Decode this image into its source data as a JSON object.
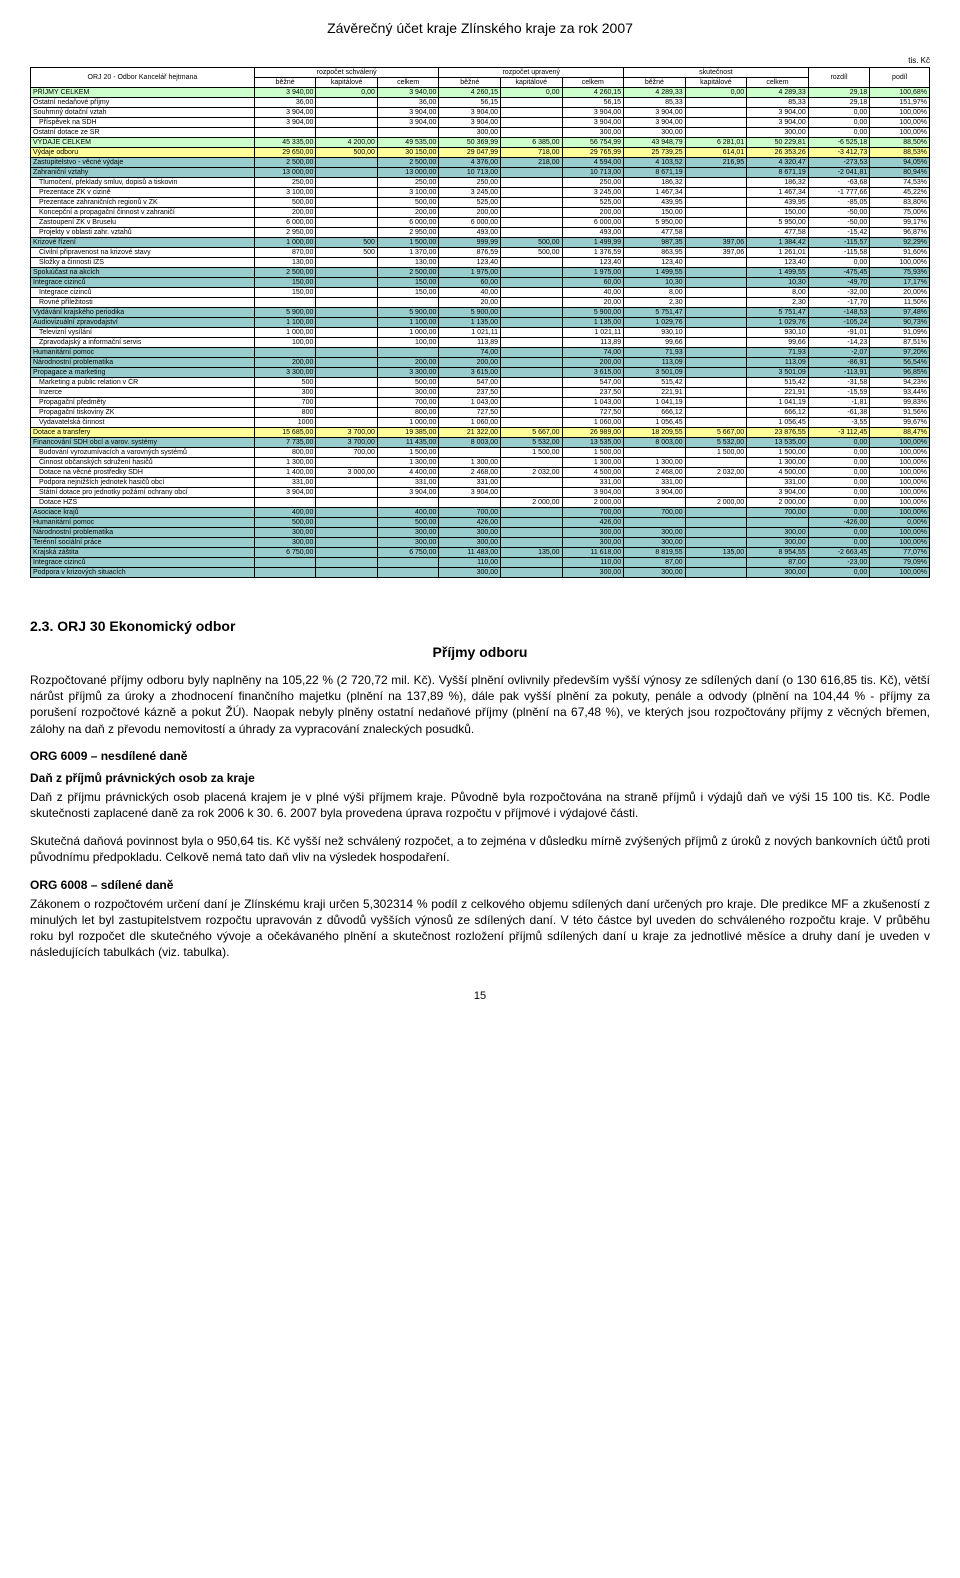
{
  "page_title": "Závěrečný účet kraje Zlínského kraje za rok 2007",
  "unit": "tis. Kč",
  "table": {
    "header_top": [
      "ORJ 20 - Odbor Kancelář hejtmana",
      "rozpočet schválený",
      "rozpočet upravený",
      "skutečnost",
      "rozdíl",
      "podíl"
    ],
    "header_sub": [
      "běžné",
      "kapitálové",
      "celkem",
      "běžné",
      "kapitálové",
      "celkem",
      "běžné",
      "kapitálové",
      "celkem"
    ],
    "rows": [
      {
        "hl": "green",
        "indent": 0,
        "label": "PŘÍJMY CELKEM",
        "v": [
          "3 940,00",
          "0,00",
          "3 940,00",
          "4 260,15",
          "0,00",
          "4 260,15",
          "4 289,33",
          "0,00",
          "4 289,33",
          "29,18",
          "100,68%"
        ]
      },
      {
        "indent": 0,
        "label": "Ostatní nedaňové příjmy",
        "v": [
          "36,00",
          "",
          "36,00",
          "56,15",
          "",
          "56,15",
          "85,33",
          "",
          "85,33",
          "29,18",
          "151,97%"
        ]
      },
      {
        "indent": 0,
        "label": "Souhrnný dotační vztah",
        "v": [
          "3 904,00",
          "",
          "3 904,00",
          "3 904,00",
          "",
          "3 904,00",
          "3 904,00",
          "",
          "3 904,00",
          "0,00",
          "100,00%"
        ]
      },
      {
        "indent": 1,
        "label": "Příspěvek na SDH",
        "v": [
          "3 904,00",
          "",
          "3 904,00",
          "3 904,00",
          "",
          "3 904,00",
          "3 904,00",
          "",
          "3 904,00",
          "0,00",
          "100,00%"
        ]
      },
      {
        "indent": 0,
        "label": "Ostatní dotace ze SR",
        "v": [
          "",
          "",
          "",
          "300,00",
          "",
          "300,00",
          "300,00",
          "",
          "300,00",
          "0,00",
          "100,00%"
        ]
      },
      {
        "hl": "green",
        "indent": 0,
        "label": "VÝDAJE CELKEM",
        "v": [
          "45 335,00",
          "4 200,00",
          "49 535,00",
          "50 369,99",
          "6 385,00",
          "56 754,99",
          "43 948,79",
          "6 281,01",
          "50 229,81",
          "-6 525,18",
          "88,50%"
        ]
      },
      {
        "hl": "yellow",
        "indent": 0,
        "label": "Výdaje odboru",
        "v": [
          "29 650,00",
          "500,00",
          "30 150,00",
          "29 047,99",
          "718,00",
          "29 765,99",
          "25 739,25",
          "614,01",
          "26 353,26",
          "-3 412,73",
          "88,53%"
        ]
      },
      {
        "hl": "teal",
        "indent": 0,
        "label": "Zastupitelstvo - věcné výdaje",
        "v": [
          "2 500,00",
          "",
          "2 500,00",
          "4 376,00",
          "218,00",
          "4 594,00",
          "4 103,52",
          "216,95",
          "4 320,47",
          "-273,53",
          "94,05%"
        ]
      },
      {
        "hl": "teal",
        "indent": 0,
        "label": "Zahraniční vztahy",
        "v": [
          "13 000,00",
          "",
          "13 000,00",
          "10 713,00",
          "",
          "10 713,00",
          "8 671,19",
          "",
          "8 671,19",
          "-2 041,81",
          "80,94%"
        ]
      },
      {
        "indent": 1,
        "label": "Tlumočení, překlady smluv, dopisů a tiskovin",
        "v": [
          "250,00",
          "",
          "250,00",
          "250,00",
          "",
          "250,00",
          "186,32",
          "",
          "186,32",
          "-63,68",
          "74,53%"
        ]
      },
      {
        "indent": 1,
        "label": "Prezentace ZK v cizině",
        "v": [
          "3 100,00",
          "",
          "3 100,00",
          "3 245,00",
          "",
          "3 245,00",
          "1 467,34",
          "",
          "1 467,34",
          "-1 777,66",
          "45,22%"
        ]
      },
      {
        "indent": 1,
        "label": "Prezentace zahraničních regionů v ZK",
        "v": [
          "500,00",
          "",
          "500,00",
          "525,00",
          "",
          "525,00",
          "439,95",
          "",
          "439,95",
          "-85,05",
          "83,80%"
        ]
      },
      {
        "indent": 1,
        "label": "Koncepční a propagační činnost v zahraničí",
        "v": [
          "200,00",
          "",
          "200,00",
          "200,00",
          "",
          "200,00",
          "150,00",
          "",
          "150,00",
          "-50,00",
          "75,00%"
        ]
      },
      {
        "indent": 1,
        "label": "Zastoupení ZK v Bruselu",
        "v": [
          "6 000,00",
          "",
          "6 000,00",
          "6 000,00",
          "",
          "6 000,00",
          "5 950,00",
          "",
          "5 950,00",
          "-50,00",
          "99,17%"
        ]
      },
      {
        "indent": 1,
        "label": "Projekty v oblasti zahr. vztahů",
        "v": [
          "2 950,00",
          "",
          "2 950,00",
          "493,00",
          "",
          "493,00",
          "477,58",
          "",
          "477,58",
          "-15,42",
          "96,87%"
        ]
      },
      {
        "hl": "teal",
        "indent": 0,
        "label": "Krizové řízení",
        "v": [
          "1 000,00",
          "500",
          "1 500,00",
          "999,99",
          "500,00",
          "1 499,99",
          "987,35",
          "397,06",
          "1 384,42",
          "-115,57",
          "92,29%"
        ]
      },
      {
        "indent": 1,
        "label": "Civilní připravenost na krizové stavy",
        "v": [
          "870,00",
          "500",
          "1 370,00",
          "876,59",
          "500,00",
          "1 376,59",
          "863,95",
          "397,06",
          "1 261,01",
          "-115,58",
          "91,60%"
        ]
      },
      {
        "indent": 1,
        "label": "Složky a činnosti IZS",
        "v": [
          "130,00",
          "",
          "130,00",
          "123,40",
          "",
          "123,40",
          "123,40",
          "",
          "123,40",
          "0,00",
          "100,00%"
        ]
      },
      {
        "hl": "teal",
        "indent": 0,
        "label": "Spoluúčast na akcích",
        "v": [
          "2 500,00",
          "",
          "2 500,00",
          "1 975,00",
          "",
          "1 975,00",
          "1 499,55",
          "",
          "1 499,55",
          "-475,45",
          "75,93%"
        ]
      },
      {
        "hl": "teal",
        "indent": 0,
        "label": "Integrace cizinců",
        "v": [
          "150,00",
          "",
          "150,00",
          "60,00",
          "",
          "60,00",
          "10,30",
          "",
          "10,30",
          "-49,70",
          "17,17%"
        ]
      },
      {
        "indent": 1,
        "label": "Integrace cizinců",
        "v": [
          "150,00",
          "",
          "150,00",
          "40,00",
          "",
          "40,00",
          "8,00",
          "",
          "8,00",
          "-32,00",
          "20,00%"
        ]
      },
      {
        "indent": 1,
        "label": "Rovné příležitosti",
        "v": [
          "",
          "",
          "",
          "20,00",
          "",
          "20,00",
          "2,30",
          "",
          "2,30",
          "-17,70",
          "11,50%"
        ]
      },
      {
        "hl": "teal",
        "indent": 0,
        "label": "Vydávání krajského periodika",
        "v": [
          "5 900,00",
          "",
          "5 900,00",
          "5 900,00",
          "",
          "5 900,00",
          "5 751,47",
          "",
          "5 751,47",
          "-148,53",
          "97,48%"
        ]
      },
      {
        "hl": "teal",
        "indent": 0,
        "label": "Audiovizuální zpravodajství",
        "v": [
          "1 100,00",
          "",
          "1 100,00",
          "1 135,00",
          "",
          "1 135,00",
          "1 029,76",
          "",
          "1 029,76",
          "-105,24",
          "90,73%"
        ]
      },
      {
        "indent": 1,
        "label": "Televizní vysílání",
        "v": [
          "1 000,00",
          "",
          "1 000,00",
          "1 021,11",
          "",
          "1 021,11",
          "930,10",
          "",
          "930,10",
          "-91,01",
          "91,09%"
        ]
      },
      {
        "indent": 1,
        "label": "Zpravodajský a informační servis",
        "v": [
          "100,00",
          "",
          "100,00",
          "113,89",
          "",
          "113,89",
          "99,66",
          "",
          "99,66",
          "-14,23",
          "87,51%"
        ]
      },
      {
        "hl": "teal",
        "indent": 0,
        "label": "Humanitární pomoc",
        "v": [
          "",
          "",
          "",
          "74,00",
          "",
          "74,00",
          "71,93",
          "",
          "71,93",
          "-2,07",
          "97,20%"
        ]
      },
      {
        "hl": "teal",
        "indent": 0,
        "label": "Národnostní problematika",
        "v": [
          "200,00",
          "",
          "200,00",
          "200,00",
          "",
          "200,00",
          "113,09",
          "",
          "113,09",
          "-86,91",
          "56,54%"
        ]
      },
      {
        "hl": "teal",
        "indent": 0,
        "label": "Propagace a marketing",
        "v": [
          "3 300,00",
          "",
          "3 300,00",
          "3 615,00",
          "",
          "3 615,00",
          "3 501,09",
          "",
          "3 501,09",
          "-113,91",
          "96,85%"
        ]
      },
      {
        "indent": 1,
        "label": "Marketing a public relation v ČR",
        "v": [
          "500",
          "",
          "500,00",
          "547,00",
          "",
          "547,00",
          "515,42",
          "",
          "515,42",
          "-31,58",
          "94,23%"
        ]
      },
      {
        "indent": 1,
        "label": "Inzerce",
        "v": [
          "300",
          "",
          "300,00",
          "237,50",
          "",
          "237,50",
          "221,91",
          "",
          "221,91",
          "-15,59",
          "93,44%"
        ]
      },
      {
        "indent": 1,
        "label": "Propagační předměty",
        "v": [
          "700",
          "",
          "700,00",
          "1 043,00",
          "",
          "1 043,00",
          "1 041,19",
          "",
          "1 041,19",
          "-1,81",
          "99,83%"
        ]
      },
      {
        "indent": 1,
        "label": "Propagační tiskoviny ZK",
        "v": [
          "800",
          "",
          "800,00",
          "727,50",
          "",
          "727,50",
          "666,12",
          "",
          "666,12",
          "-61,38",
          "91,56%"
        ]
      },
      {
        "indent": 1,
        "label": "Vydavatelská činnost",
        "v": [
          "1000",
          "",
          "1 000,00",
          "1 060,00",
          "",
          "1 060,00",
          "1 056,45",
          "",
          "1 056,45",
          "-3,55",
          "99,67%"
        ]
      },
      {
        "hl": "yellow",
        "indent": 0,
        "label": "Dotace a transfery",
        "v": [
          "15 685,00",
          "3 700,00",
          "19 385,00",
          "21 322,00",
          "5 667,00",
          "26 989,00",
          "18 209,55",
          "5 667,00",
          "23 876,55",
          "-3 112,45",
          "88,47%"
        ]
      },
      {
        "hl": "teal",
        "indent": 0,
        "label": "Financování SDH obcí a varov. systémy",
        "v": [
          "7 735,00",
          "3 700,00",
          "11 435,00",
          "8 003,00",
          "5 532,00",
          "13 535,00",
          "8 003,00",
          "5 532,00",
          "13 535,00",
          "0,00",
          "100,00%"
        ]
      },
      {
        "indent": 1,
        "label": "Budování vyrozumívacích a varovných systémů",
        "v": [
          "800,00",
          "700,00",
          "1 500,00",
          "",
          "1 500,00",
          "1 500,00",
          "",
          "1 500,00",
          "1 500,00",
          "0,00",
          "100,00%"
        ]
      },
      {
        "indent": 1,
        "label": "Činnost občanských sdružení hasičů",
        "v": [
          "1 300,00",
          "",
          "1 300,00",
          "1 300,00",
          "",
          "1 300,00",
          "1 300,00",
          "",
          "1 300,00",
          "0,00",
          "100,00%"
        ]
      },
      {
        "indent": 1,
        "label": "Dotace na věcné prostředky SDH",
        "v": [
          "1 400,00",
          "3 000,00",
          "4 400,00",
          "2 468,00",
          "2 032,00",
          "4 500,00",
          "2 468,00",
          "2 032,00",
          "4 500,00",
          "0,00",
          "100,00%"
        ]
      },
      {
        "indent": 1,
        "label": "Podpora nejnižších jednotek hasičů obcí",
        "v": [
          "331,00",
          "",
          "331,00",
          "331,00",
          "",
          "331,00",
          "331,00",
          "",
          "331,00",
          "0,00",
          "100,00%"
        ]
      },
      {
        "indent": 1,
        "label": "Státní dotace pro jednotky požární ochrany obcí",
        "v": [
          "3 904,00",
          "",
          "3 904,00",
          "3 904,00",
          "",
          "3 904,00",
          "3 904,00",
          "",
          "3 904,00",
          "0,00",
          "100,00%"
        ]
      },
      {
        "indent": 1,
        "label": "Dotace HZS",
        "v": [
          "",
          "",
          "",
          "",
          "2 000,00",
          "2 000,00",
          "",
          "2 000,00",
          "2 000,00",
          "0,00",
          "100,00%"
        ]
      },
      {
        "hl": "teal",
        "indent": 0,
        "label": "Asociace krajů",
        "v": [
          "400,00",
          "",
          "400,00",
          "700,00",
          "",
          "700,00",
          "700,00",
          "",
          "700,00",
          "0,00",
          "100,00%"
        ]
      },
      {
        "hl": "teal",
        "indent": 0,
        "label": "Humanitární pomoc",
        "v": [
          "500,00",
          "",
          "500,00",
          "426,00",
          "",
          "426,00",
          "",
          "",
          "",
          "-426,00",
          "0,00%"
        ]
      },
      {
        "hl": "teal",
        "indent": 0,
        "label": "Národnostní problematika",
        "v": [
          "300,00",
          "",
          "300,00",
          "300,00",
          "",
          "300,00",
          "300,00",
          "",
          "300,00",
          "0,00",
          "100,00%"
        ]
      },
      {
        "hl": "teal",
        "indent": 0,
        "label": "Terénní sociální práce",
        "v": [
          "300,00",
          "",
          "300,00",
          "300,00",
          "",
          "300,00",
          "300,00",
          "",
          "300,00",
          "0,00",
          "100,00%"
        ]
      },
      {
        "hl": "teal",
        "indent": 0,
        "label": "Krajská záštita",
        "v": [
          "6 750,00",
          "",
          "6 750,00",
          "11 483,00",
          "135,00",
          "11 618,00",
          "8 819,55",
          "135,00",
          "8 954,55",
          "-2 663,45",
          "77,07%"
        ]
      },
      {
        "hl": "teal",
        "indent": 0,
        "label": "Integrace cizinců",
        "v": [
          "",
          "",
          "",
          "110,00",
          "",
          "110,00",
          "87,00",
          "",
          "87,00",
          "-23,00",
          "79,09%"
        ]
      },
      {
        "hl": "teal",
        "indent": 0,
        "label": "Podpora v krizových situacích",
        "v": [
          "",
          "",
          "",
          "300,00",
          "",
          "300,00",
          "300,00",
          "",
          "300,00",
          "0,00",
          "100,00%"
        ]
      }
    ],
    "header_bg": "#ffffff",
    "col_green": "#ccffcc",
    "col_yellow": "#ffff99",
    "col_teal": "#99cccc"
  },
  "section_heading": "2.3.  ORJ 30 Ekonomický odbor",
  "sub_heading": "Příjmy odboru",
  "para1": "Rozpočtované příjmy odboru byly naplněny na 105,22 % (2 720,72 mil. Kč). Vyšší plnění ovlivnily především vyšší výnosy ze sdílených daní (o 130 616,85 tis. Kč), větší nárůst příjmů za úroky a zhodnocení finančního majetku (plnění na 137,89 %), dále pak vyšší plnění za pokuty, penále a odvody (plnění na 104,44 % - příjmy za porušení rozpočtové kázně a pokut ŽÚ). Naopak nebyly plněny ostatní nedaňové příjmy (plnění na 67,48 %), ve kterých jsou rozpočtovány příjmy z věcných břemen, zálohy na daň z převodu nemovitostí a úhrady za vypracování znaleckých posudků.",
  "h6009": "ORG 6009 – nesdílené daně",
  "h6009_sub": "Daň z příjmů právnických osob za kraje",
  "para2": "Daň z příjmu právnických osob placená krajem je v plné výši příjmem kraje. Původně byla rozpočtována na straně příjmů i výdajů daň ve výši 15 100 tis. Kč. Podle skutečnosti zaplacené daně za rok 2006 k 30. 6. 2007 byla provedena úprava rozpočtu v příjmové i výdajové části.",
  "para3": "Skutečná daňová povinnost byla o 950,64 tis. Kč vyšší než schválený rozpočet, a to zejména v důsledku mírně zvýšených příjmů z úroků z nových bankovních účtů proti původnímu předpokladu. Celkově nemá tato daň vliv na výsledek hospodaření.",
  "h6008": "ORG 6008 – sdílené daně",
  "para4": "Zákonem o rozpočtovém určení daní je Zlínskému kraji určen 5,302314 % podíl z celkového objemu sdílených daní určených pro kraje. Dle predikce MF a zkušeností z minulých let byl zastupitelstvem rozpočtu upravován z důvodů vyšších výnosů ze sdílených daní. V této částce byl uveden do schváleného rozpočtu kraje. V průběhu roku byl rozpočet dle skutečného vývoje a očekávaného plnění a skutečnost rozložení příjmů sdílených daní u kraje za jednotlivé měsíce a druhy daní je uveden v následujících tabulkách (viz. tabulka).",
  "page_number": "15"
}
